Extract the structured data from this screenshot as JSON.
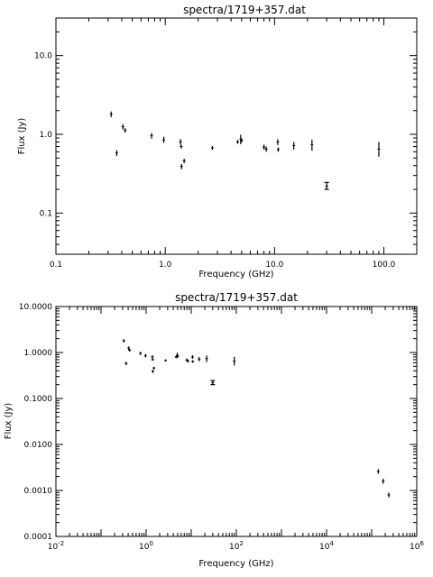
{
  "chart_data": [
    {
      "type": "scatter",
      "title": "spectra/1719+357.dat",
      "xlabel": "Frequency (GHz)",
      "ylabel": "Flux (Jy)",
      "x_scale": "log",
      "y_scale": "log",
      "xlim": [
        0.1,
        200
      ],
      "ylim": [
        0.03,
        30
      ],
      "grid": false,
      "legend": "none",
      "x_tick_values": [
        0.1,
        1,
        10,
        100
      ],
      "x_tick_labels": [
        "0.1",
        "1.0",
        "10.0",
        "100.0"
      ],
      "y_tick_values": [
        0.1,
        1,
        10
      ],
      "y_tick_labels": [
        "0.1",
        "1.0",
        "10.0"
      ],
      "points": [
        {
          "x": 0.32,
          "y": 1.8,
          "yerr": [
            1.65,
            1.95
          ]
        },
        {
          "x": 0.36,
          "y": 0.58,
          "yerr": [
            0.53,
            0.63
          ]
        },
        {
          "x": 0.41,
          "y": 1.25,
          "yerr": [
            1.15,
            1.35
          ]
        },
        {
          "x": 0.43,
          "y": 1.12,
          "yerr": [
            1.05,
            1.2
          ]
        },
        {
          "x": 0.75,
          "y": 0.96,
          "yerr": [
            0.88,
            1.04
          ]
        },
        {
          "x": 0.97,
          "y": 0.85,
          "yerr": [
            0.78,
            0.93
          ]
        },
        {
          "x": 1.38,
          "y": 0.8,
          "yerr": [
            0.74,
            0.87
          ]
        },
        {
          "x": 1.4,
          "y": 0.7,
          "yerr": [
            0.66,
            0.74
          ]
        },
        {
          "x": 1.41,
          "y": 0.39,
          "yerr": [
            0.36,
            0.42
          ]
        },
        {
          "x": 1.49,
          "y": 0.46,
          "yerr": [
            0.43,
            0.49
          ]
        },
        {
          "x": 2.7,
          "y": 0.67,
          "yerr": [
            0.64,
            0.71
          ]
        },
        {
          "x": 4.6,
          "y": 0.8,
          "yerr": [
            0.76,
            0.85
          ]
        },
        {
          "x": 4.9,
          "y": 0.87,
          "yerr": [
            0.75,
            0.99
          ]
        },
        {
          "x": 5.0,
          "y": 0.84,
          "yerr": [
            0.79,
            0.89
          ]
        },
        {
          "x": 8.0,
          "y": 0.69,
          "yerr": [
            0.64,
            0.74
          ]
        },
        {
          "x": 8.4,
          "y": 0.65,
          "yerr": [
            0.6,
            0.7
          ]
        },
        {
          "x": 10.7,
          "y": 0.8,
          "yerr": [
            0.73,
            0.87
          ]
        },
        {
          "x": 10.8,
          "y": 0.64,
          "yerr": [
            0.6,
            0.68
          ]
        },
        {
          "x": 15.0,
          "y": 0.72,
          "yerr": [
            0.64,
            0.8
          ]
        },
        {
          "x": 22.0,
          "y": 0.74,
          "yerr": [
            0.62,
            0.86
          ]
        },
        {
          "x": 30.0,
          "y": 0.22,
          "yerr": [
            0.2,
            0.245
          ],
          "capped": true
        },
        {
          "x": 90.0,
          "y": 0.65,
          "yerr": [
            0.52,
            0.8
          ]
        }
      ]
    },
    {
      "type": "scatter",
      "title": "spectra/1719+357.dat",
      "xlabel": "Frequency (GHz)",
      "ylabel": "Flux (Jy)",
      "x_scale": "log",
      "y_scale": "log",
      "xlim": [
        0.01,
        1000000
      ],
      "ylim": [
        0.0001,
        10
      ],
      "grid": false,
      "legend": "none",
      "x_tick_values": [
        0.01,
        1,
        100,
        10000,
        1000000
      ],
      "x_tick_labels": [
        {
          "base": "10",
          "exp": "-2"
        },
        {
          "base": "10",
          "exp": "0"
        },
        {
          "base": "10",
          "exp": "2"
        },
        {
          "base": "10",
          "exp": "4"
        },
        {
          "base": "10",
          "exp": "6"
        }
      ],
      "y_tick_values": [
        0.0001,
        0.001,
        0.01,
        0.1,
        1,
        10
      ],
      "y_tick_labels": [
        "0.0001",
        "0.0010",
        "0.0100",
        "0.1000",
        "1.0000",
        "10.0000"
      ],
      "points": [
        {
          "x": 0.32,
          "y": 1.8,
          "yerr": [
            1.65,
            1.95
          ]
        },
        {
          "x": 0.36,
          "y": 0.58,
          "yerr": [
            0.53,
            0.63
          ]
        },
        {
          "x": 0.41,
          "y": 1.25,
          "yerr": [
            1.15,
            1.35
          ]
        },
        {
          "x": 0.43,
          "y": 1.12,
          "yerr": [
            1.05,
            1.2
          ]
        },
        {
          "x": 0.75,
          "y": 0.96,
          "yerr": [
            0.88,
            1.04
          ]
        },
        {
          "x": 0.97,
          "y": 0.85,
          "yerr": [
            0.78,
            0.93
          ]
        },
        {
          "x": 1.38,
          "y": 0.8,
          "yerr": [
            0.74,
            0.87
          ]
        },
        {
          "x": 1.4,
          "y": 0.7,
          "yerr": [
            0.66,
            0.74
          ]
        },
        {
          "x": 1.41,
          "y": 0.39,
          "yerr": [
            0.36,
            0.42
          ]
        },
        {
          "x": 1.49,
          "y": 0.46,
          "yerr": [
            0.43,
            0.49
          ]
        },
        {
          "x": 2.7,
          "y": 0.67,
          "yerr": [
            0.64,
            0.71
          ]
        },
        {
          "x": 4.6,
          "y": 0.8,
          "yerr": [
            0.76,
            0.85
          ]
        },
        {
          "x": 4.9,
          "y": 0.87,
          "yerr": [
            0.75,
            0.99
          ]
        },
        {
          "x": 5.0,
          "y": 0.84,
          "yerr": [
            0.79,
            0.89
          ]
        },
        {
          "x": 8.0,
          "y": 0.69,
          "yerr": [
            0.64,
            0.74
          ]
        },
        {
          "x": 8.4,
          "y": 0.65,
          "yerr": [
            0.6,
            0.7
          ]
        },
        {
          "x": 10.7,
          "y": 0.8,
          "yerr": [
            0.73,
            0.87
          ]
        },
        {
          "x": 10.8,
          "y": 0.64,
          "yerr": [
            0.6,
            0.68
          ]
        },
        {
          "x": 15.0,
          "y": 0.72,
          "yerr": [
            0.64,
            0.8
          ]
        },
        {
          "x": 22.0,
          "y": 0.74,
          "yerr": [
            0.62,
            0.86
          ]
        },
        {
          "x": 30.0,
          "y": 0.22,
          "yerr": [
            0.2,
            0.245
          ],
          "capped": true
        },
        {
          "x": 90.0,
          "y": 0.65,
          "yerr": [
            0.52,
            0.8
          ]
        },
        {
          "x": 140000,
          "y": 0.0026,
          "yerr": [
            0.0023,
            0.0029
          ]
        },
        {
          "x": 180000,
          "y": 0.0016,
          "yerr": [
            0.0014,
            0.0018
          ]
        },
        {
          "x": 240000,
          "y": 0.0008,
          "yerr": [
            0.0007,
            0.0009
          ]
        }
      ]
    }
  ]
}
